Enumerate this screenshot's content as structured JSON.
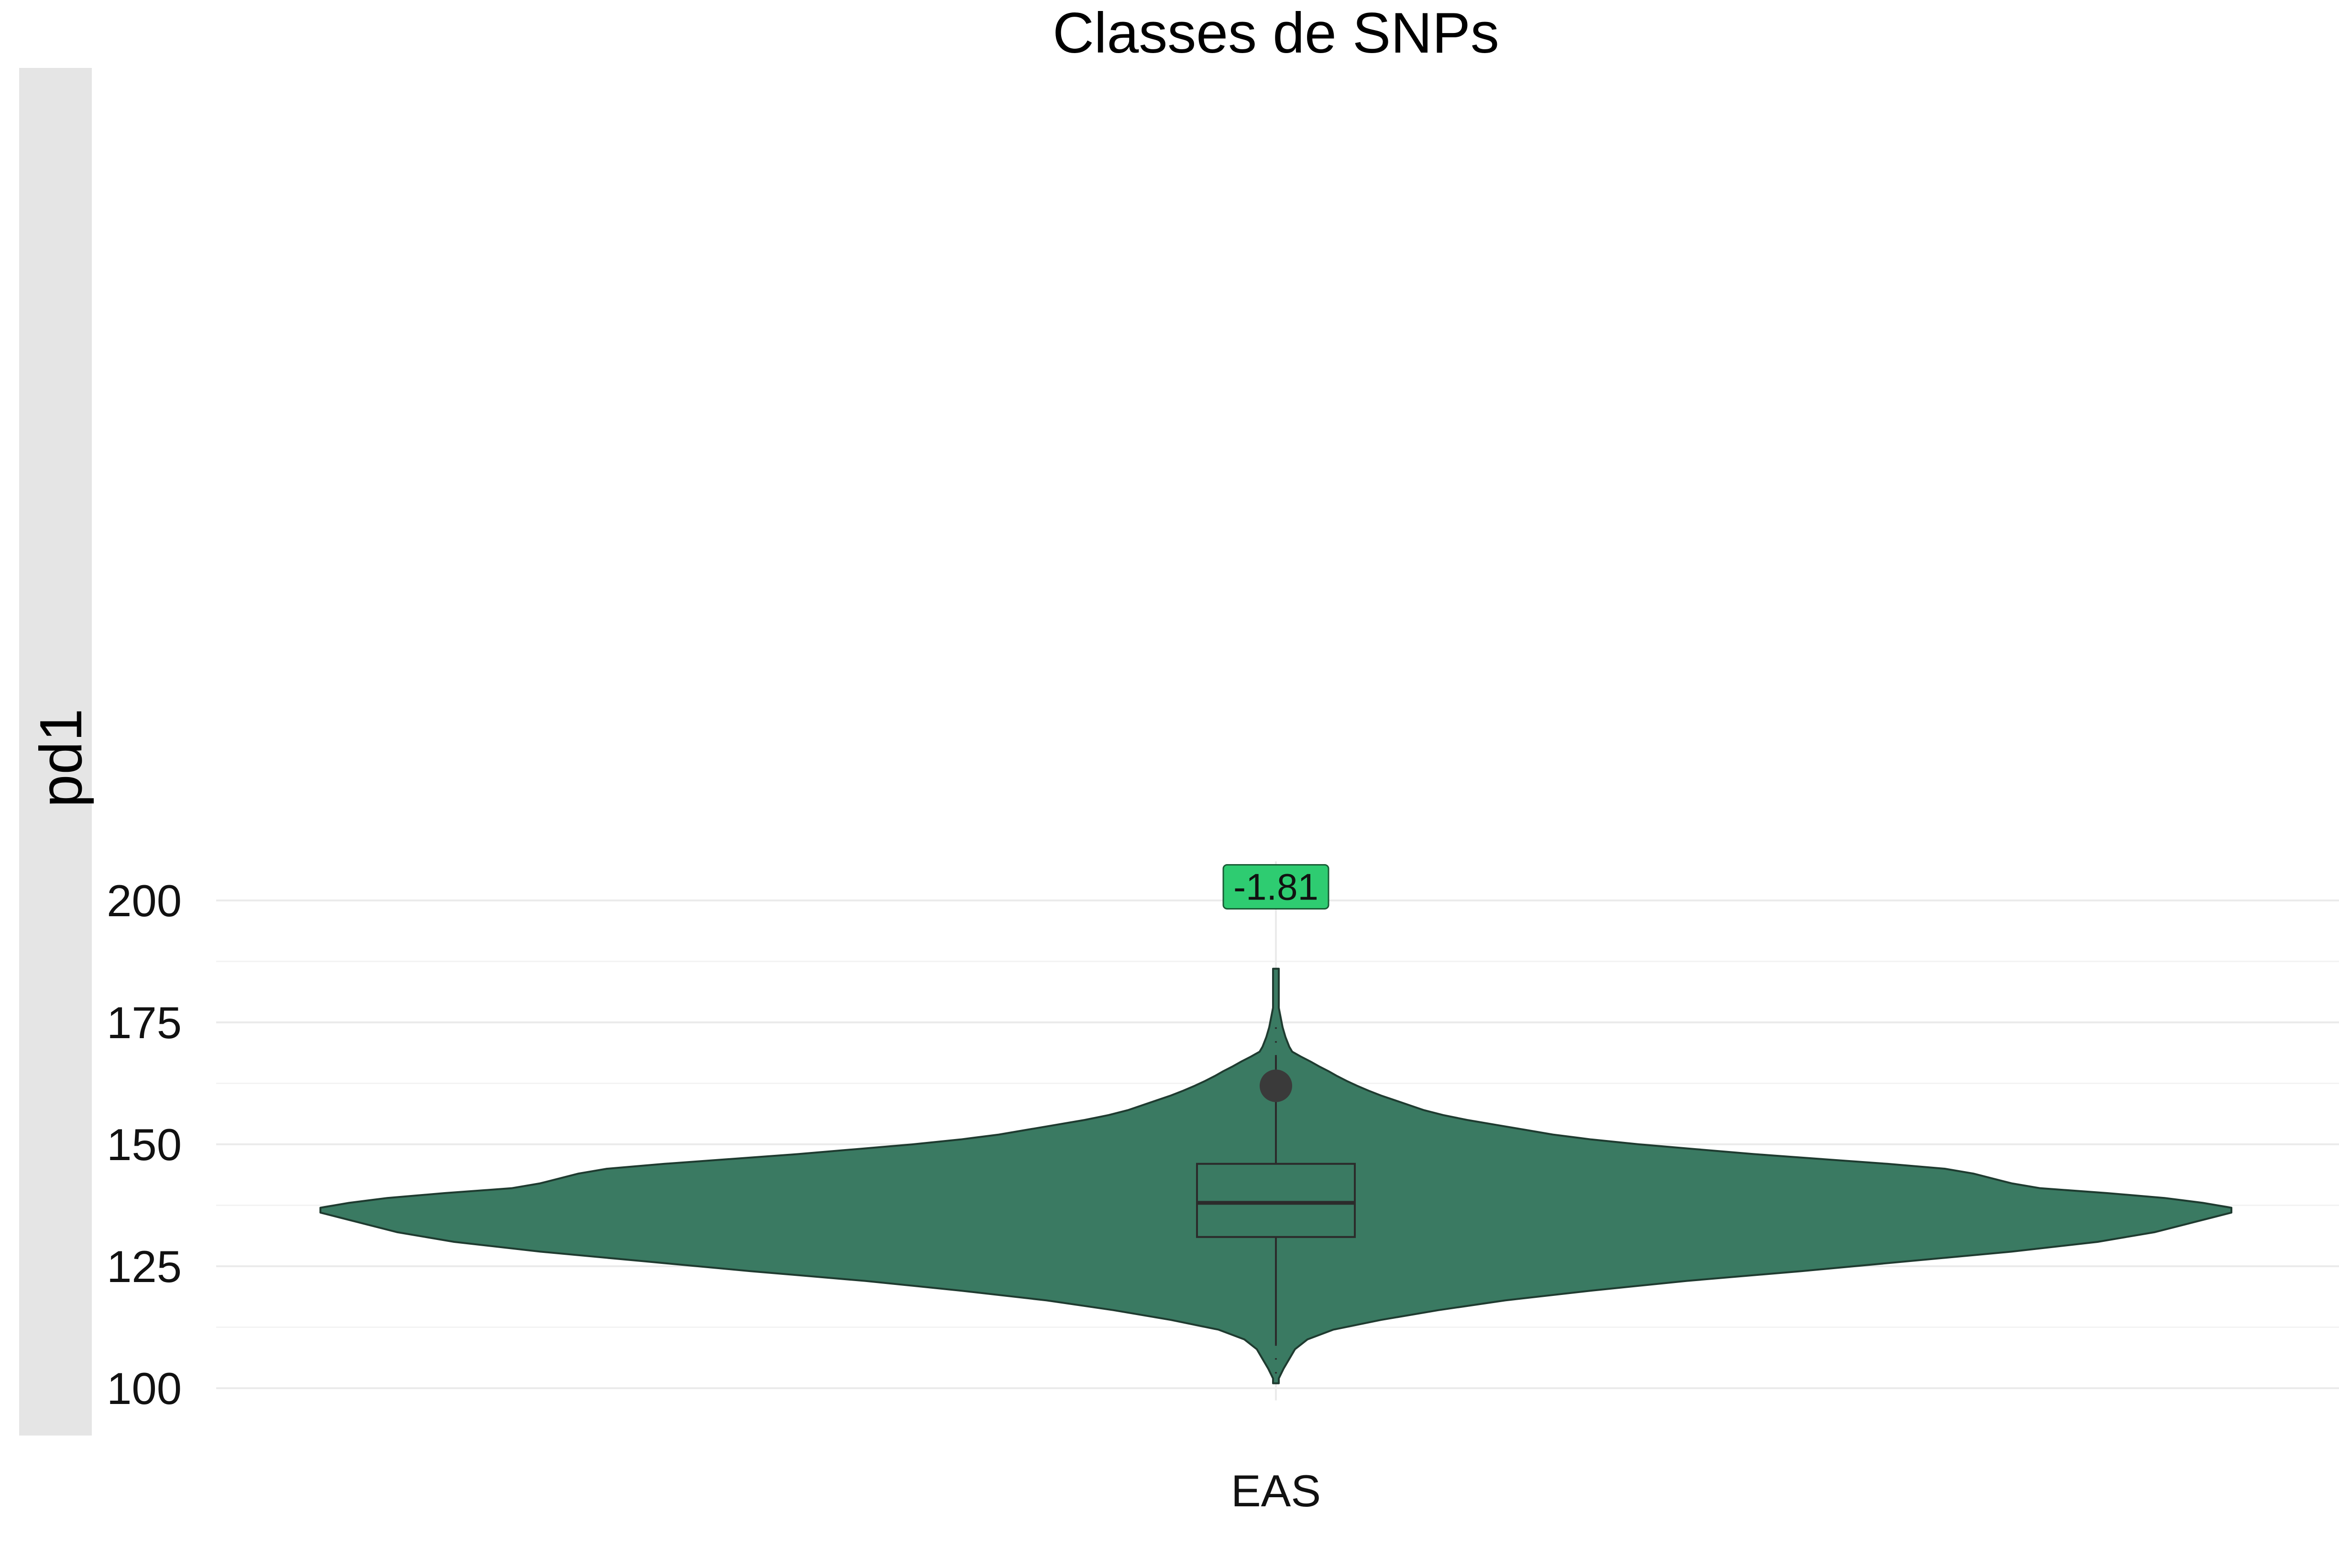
{
  "chart_data": {
    "type": "violin",
    "title": "Classes de SNPs",
    "ylabel": "pd1",
    "xlabel": "",
    "categories": [
      "EAS"
    ],
    "ylim": [
      97.5,
      208
    ],
    "yticks": [
      100,
      125,
      150,
      175,
      200
    ],
    "y_minor_ticks": [
      112.5,
      137.5,
      162.5,
      187.5
    ],
    "grid": true,
    "legend": "none",
    "colors": {
      "violin_fill": "#3a7a62",
      "violin_stroke": "#1f3b30",
      "box_stroke": "#2b2b2b",
      "mean_point": "#3a3a3a",
      "annotation_fill": "#2ecc71",
      "grid": "#ebebeb",
      "ylabel_strip": "#e5e5e5"
    },
    "series": [
      {
        "category": "EAS",
        "density_profile": [
          [
            101,
            0.003
          ],
          [
            102,
            0.003
          ],
          [
            104,
            0.008
          ],
          [
            106,
            0.014
          ],
          [
            108,
            0.02
          ],
          [
            110,
            0.033
          ],
          [
            112,
            0.06
          ],
          [
            114,
            0.11
          ],
          [
            116,
            0.17
          ],
          [
            118,
            0.24
          ],
          [
            120,
            0.33
          ],
          [
            122,
            0.43
          ],
          [
            124,
            0.55
          ],
          [
            126,
            0.66
          ],
          [
            128,
            0.77
          ],
          [
            130,
            0.86
          ],
          [
            132,
            0.92
          ],
          [
            134,
            0.96
          ],
          [
            135,
            0.98
          ],
          [
            136,
            1.0
          ],
          [
            137,
            1.0
          ],
          [
            138,
            0.97
          ],
          [
            139,
            0.93
          ],
          [
            140,
            0.87
          ],
          [
            141,
            0.8
          ],
          [
            142,
            0.77
          ],
          [
            143,
            0.75
          ],
          [
            144,
            0.73
          ],
          [
            145,
            0.7
          ],
          [
            146,
            0.64
          ],
          [
            147,
            0.57
          ],
          [
            148,
            0.5
          ],
          [
            149,
            0.44
          ],
          [
            150,
            0.38
          ],
          [
            151,
            0.33
          ],
          [
            152,
            0.29
          ],
          [
            153,
            0.26
          ],
          [
            154,
            0.23
          ],
          [
            155,
            0.2
          ],
          [
            156,
            0.175
          ],
          [
            157,
            0.155
          ],
          [
            158,
            0.14
          ],
          [
            159,
            0.125
          ],
          [
            160,
            0.11
          ],
          [
            161,
            0.097
          ],
          [
            162,
            0.085
          ],
          [
            163,
            0.074
          ],
          [
            164,
            0.064
          ],
          [
            165,
            0.055
          ],
          [
            166,
            0.045
          ],
          [
            167,
            0.036
          ],
          [
            168,
            0.026
          ],
          [
            169,
            0.017
          ],
          [
            170,
            0.014
          ],
          [
            172,
            0.01
          ],
          [
            174,
            0.007
          ],
          [
            176,
            0.005
          ],
          [
            178,
            0.003
          ],
          [
            180,
            0.003
          ],
          [
            182,
            0.003
          ],
          [
            184,
            0.003
          ],
          [
            186,
            0.003
          ]
        ],
        "box": {
          "q1": 131,
          "median": 138,
          "q3": 146,
          "whisker_low": 109,
          "whisker_high": 168
        },
        "mean": 162,
        "annotation": {
          "text": "-1.81",
          "y": 202.8
        }
      }
    ]
  }
}
